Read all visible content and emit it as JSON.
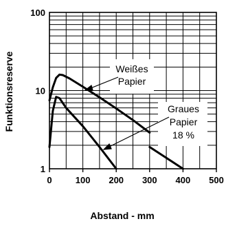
{
  "chart_data": {
    "type": "line",
    "xlabel": "Abstand - mm",
    "ylabel": "Funktionsreserve",
    "xlim": [
      0,
      500
    ],
    "ylim": [
      1,
      100
    ],
    "yscale": "log",
    "grid": true,
    "x_ticks": [
      "0",
      "100",
      "200",
      "300",
      "400",
      "500"
    ],
    "y_ticks": [
      {
        "value": 1,
        "label": "1"
      },
      {
        "value": 10,
        "label": "10"
      },
      {
        "value": 100,
        "label": "100"
      }
    ],
    "series": [
      {
        "name": "Weißes Papier",
        "label_lines": [
          "Weißes",
          "Papier"
        ],
        "points": [
          [
            0,
            7.5
          ],
          [
            10,
            11
          ],
          [
            20,
            14.5
          ],
          [
            30,
            16
          ],
          [
            40,
            15.8
          ],
          [
            60,
            14.3
          ],
          [
            100,
            11.2
          ],
          [
            150,
            8.2
          ],
          [
            200,
            5.9
          ],
          [
            250,
            4.2
          ],
          [
            300,
            2.9
          ]
        ]
      },
      {
        "name": "Graues Papier 18 %",
        "label_lines": [
          "Graues",
          "Papier",
          "18 %"
        ],
        "points": [
          [
            0,
            1.9
          ],
          [
            10,
            5.5
          ],
          [
            20,
            8.3
          ],
          [
            30,
            8.0
          ],
          [
            50,
            6.0
          ],
          [
            100,
            3.5
          ],
          [
            150,
            1.9
          ],
          [
            200,
            1.0
          ]
        ]
      }
    ],
    "extra_segment": {
      "points": [
        [
          300,
          1.9
        ],
        [
          400,
          1.0
        ]
      ]
    }
  }
}
